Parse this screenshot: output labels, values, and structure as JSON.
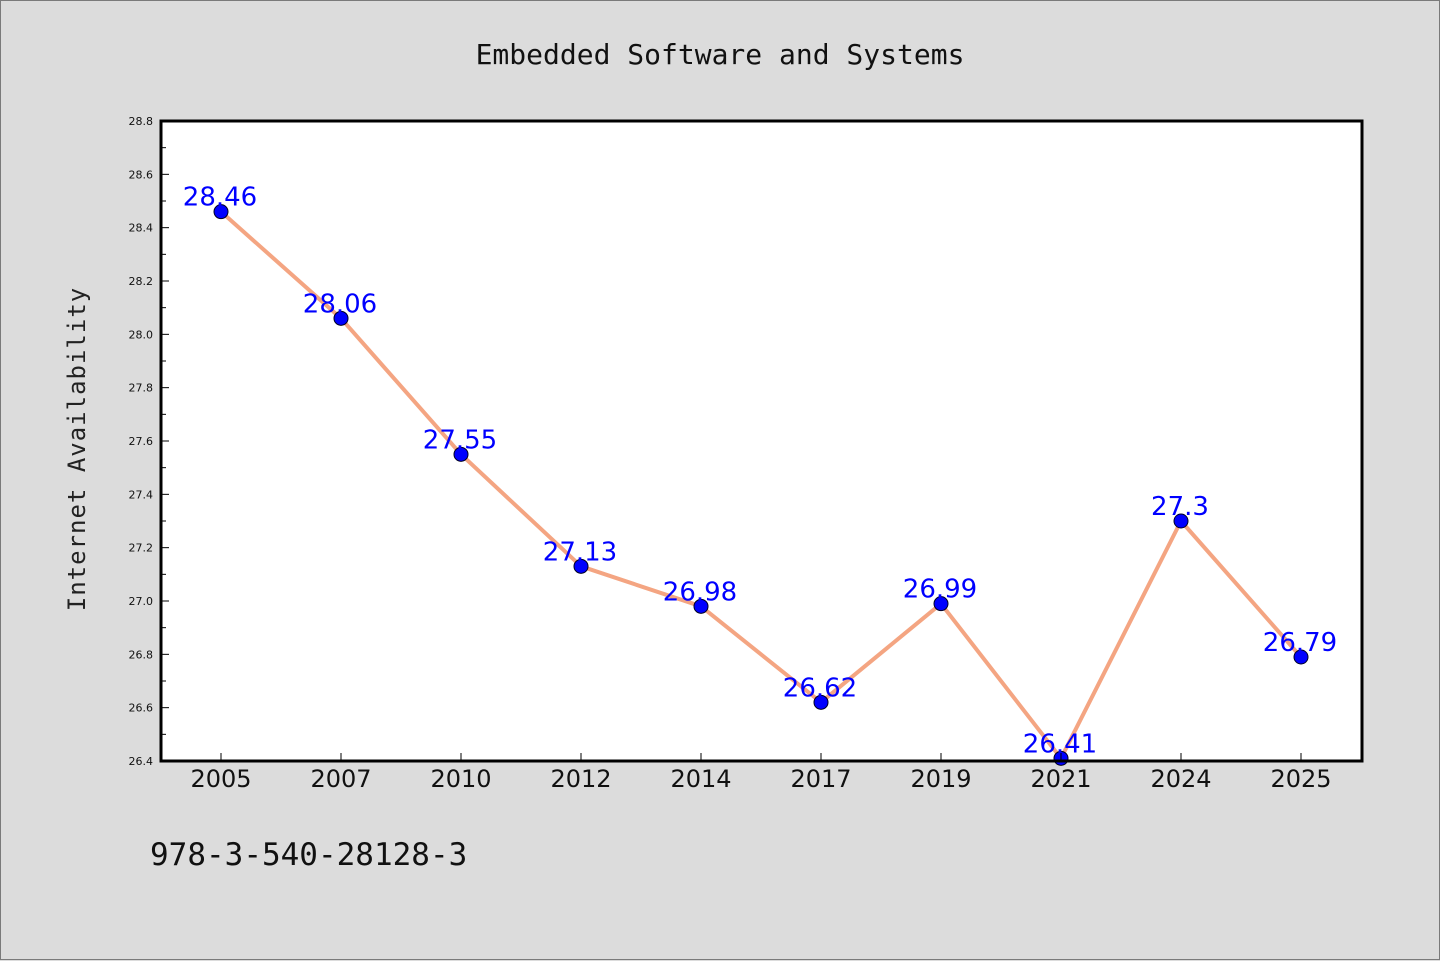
{
  "chart_data": {
    "type": "line",
    "title": "Embedded Software and Systems",
    "xlabel": "",
    "ylabel": "Internet Availability",
    "categories": [
      "2005",
      "2007",
      "2010",
      "2012",
      "2014",
      "2017",
      "2019",
      "2021",
      "2024",
      "2025"
    ],
    "series": [
      {
        "values": [
          28.46,
          28.06,
          27.55,
          27.13,
          26.98,
          26.62,
          26.99,
          26.41,
          27.3,
          26.79
        ],
        "data_labels": [
          "28.46",
          "28.06",
          "27.55",
          "27.13",
          "26.98",
          "26.62",
          "26.99",
          "26.41",
          "27.3",
          "26.79"
        ],
        "line_color": "#f4a582",
        "marker_color": "#0000ff",
        "label_color": "#0000ff"
      }
    ],
    "ylim": [
      26.4,
      28.8
    ],
    "yticks": [
      "26.4",
      "26.6",
      "26.8",
      "27.0",
      "27.2",
      "27.4",
      "27.6",
      "27.8",
      "28.0",
      "28.2",
      "28.4",
      "28.6",
      "28.8"
    ],
    "grid": false,
    "legend": "none"
  },
  "footnote": "978-3-540-28128-3",
  "colors": {
    "background": "#dcdcdc",
    "plot_background": "#ffffff",
    "axis": "#000000"
  }
}
